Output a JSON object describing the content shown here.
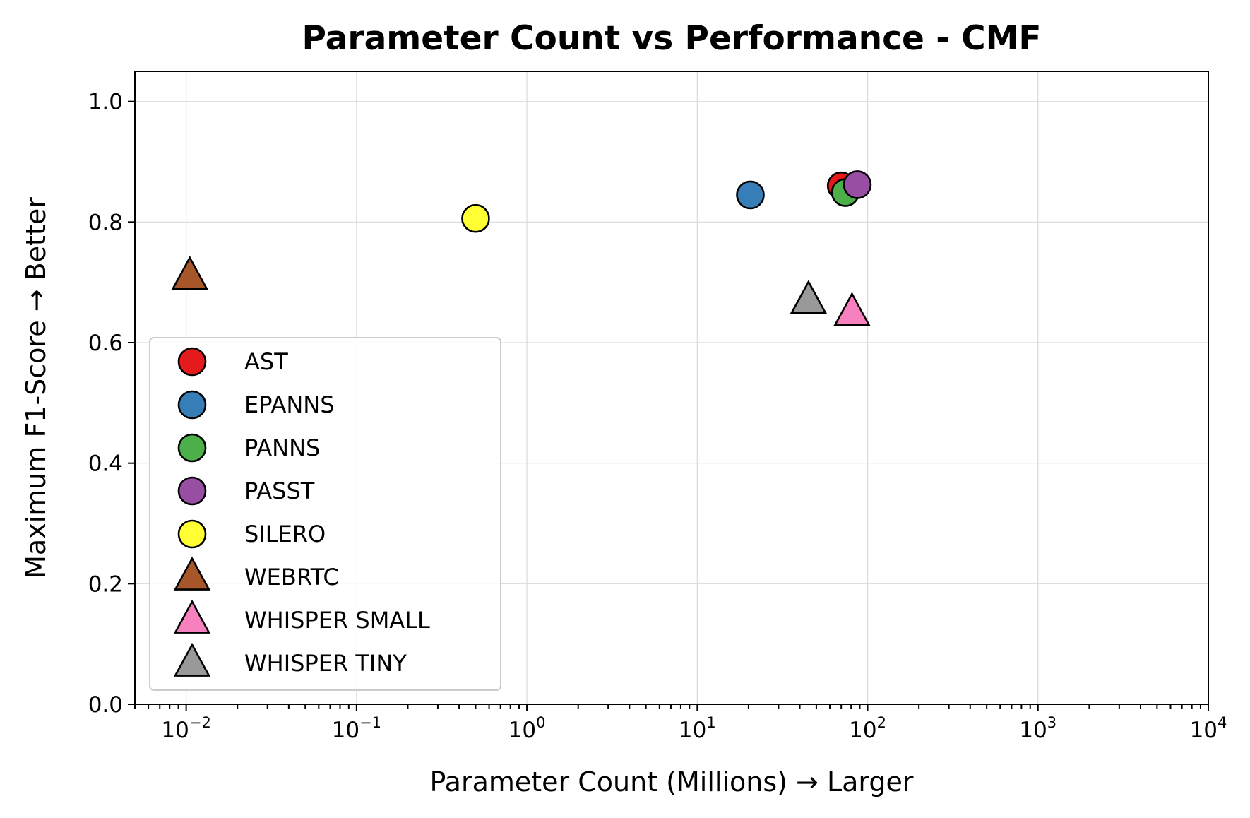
{
  "chart_data": {
    "type": "scatter",
    "title": "Parameter Count vs Performance - CMF",
    "xlabel": "Parameter Count (Millions) → Larger",
    "ylabel": "Maximum F1-Score → Better",
    "xscale": "log",
    "xlim": [
      0.005,
      10000
    ],
    "ylim": [
      0.0,
      1.05
    ],
    "grid": true,
    "legend_position": "lower-left",
    "x_ticks": [
      {
        "base": "10",
        "exp": "−2"
      },
      {
        "base": "10",
        "exp": "−1"
      },
      {
        "base": "10",
        "exp": "0"
      },
      {
        "base": "10",
        "exp": "1"
      },
      {
        "base": "10",
        "exp": "2"
      },
      {
        "base": "10",
        "exp": "3"
      },
      {
        "base": "10",
        "exp": "4"
      }
    ],
    "y_ticks": [
      "0.0",
      "0.2",
      "0.4",
      "0.6",
      "0.8",
      "1.0"
    ],
    "series": [
      {
        "name": "AST",
        "marker": "circle",
        "color": "#e41a1c",
        "x": 70,
        "y": 0.86
      },
      {
        "name": "EPANNS",
        "marker": "circle",
        "color": "#377eb8",
        "x": 20.5,
        "y": 0.845
      },
      {
        "name": "PANNS",
        "marker": "circle",
        "color": "#4daf4a",
        "x": 74,
        "y": 0.849
      },
      {
        "name": "PASST",
        "marker": "circle",
        "color": "#984ea3",
        "x": 87,
        "y": 0.862
      },
      {
        "name": "SILERO",
        "marker": "circle",
        "color": "#ffff33",
        "x": 0.5,
        "y": 0.806
      },
      {
        "name": "WEBRTC",
        "marker": "triangle",
        "color": "#a65628",
        "x": 0.0105,
        "y": 0.71
      },
      {
        "name": "WHISPER SMALL",
        "marker": "triangle",
        "color": "#f781bf",
        "x": 81,
        "y": 0.65
      },
      {
        "name": "WHISPER TINY",
        "marker": "triangle",
        "color": "#999999",
        "x": 45,
        "y": 0.67
      }
    ]
  }
}
